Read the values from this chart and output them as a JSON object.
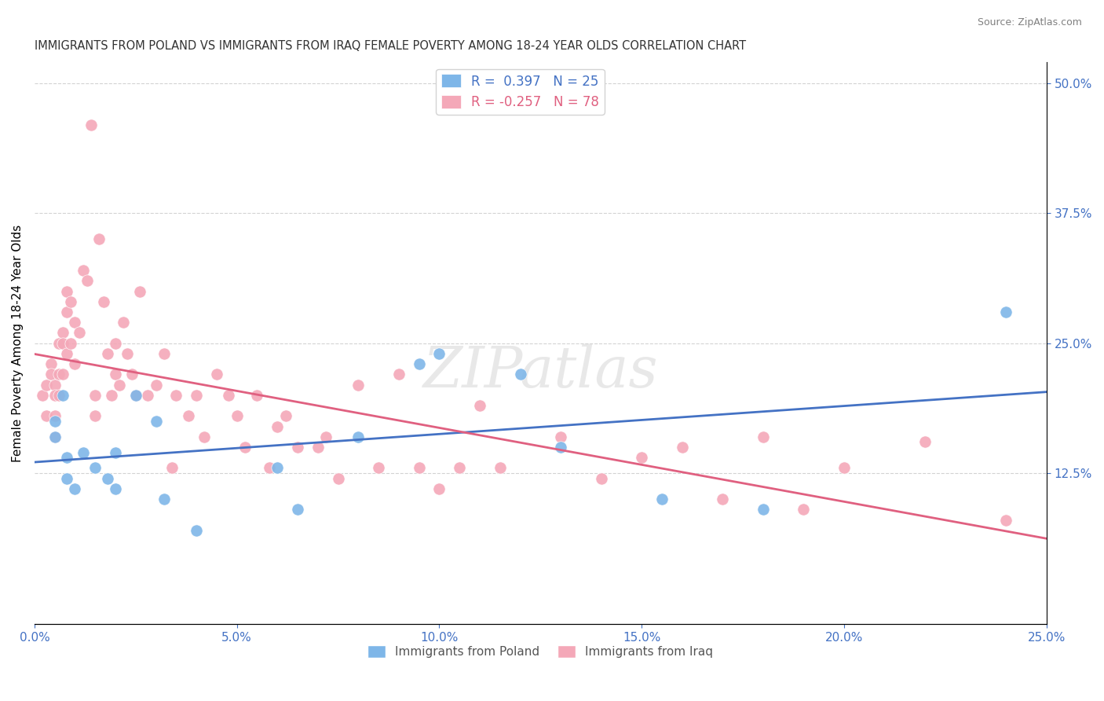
{
  "title": "IMMIGRANTS FROM POLAND VS IMMIGRANTS FROM IRAQ FEMALE POVERTY AMONG 18-24 YEAR OLDS CORRELATION CHART",
  "source": "Source: ZipAtlas.com",
  "ylabel": "Female Poverty Among 18-24 Year Olds",
  "xlabel_ticks": [
    "0.0%",
    "25.0%"
  ],
  "ylabel_ticks": [
    "12.5%",
    "25.0%",
    "37.5%",
    "50.0%"
  ],
  "xlim": [
    0,
    0.25
  ],
  "ylim": [
    -0.02,
    0.52
  ],
  "poland_color": "#7EB6E8",
  "poland_color_line": "#4472C4",
  "iraq_color": "#F4A8B8",
  "iraq_color_line": "#E06080",
  "watermark": "ZIPatlas",
  "legend_r_poland": "R =  0.397",
  "legend_n_poland": "N = 25",
  "legend_r_iraq": "R = -0.257",
  "legend_n_iraq": "N = 78",
  "poland_x": [
    0.005,
    0.005,
    0.007,
    0.008,
    0.008,
    0.01,
    0.012,
    0.015,
    0.018,
    0.02,
    0.02,
    0.025,
    0.03,
    0.032,
    0.04,
    0.06,
    0.065,
    0.08,
    0.095,
    0.1,
    0.12,
    0.13,
    0.155,
    0.18,
    0.24
  ],
  "poland_y": [
    0.175,
    0.16,
    0.2,
    0.14,
    0.12,
    0.11,
    0.145,
    0.13,
    0.12,
    0.11,
    0.145,
    0.2,
    0.175,
    0.1,
    0.07,
    0.13,
    0.09,
    0.16,
    0.23,
    0.24,
    0.22,
    0.15,
    0.1,
    0.09,
    0.28
  ],
  "iraq_x": [
    0.002,
    0.003,
    0.003,
    0.004,
    0.004,
    0.005,
    0.005,
    0.005,
    0.005,
    0.006,
    0.006,
    0.006,
    0.007,
    0.007,
    0.007,
    0.008,
    0.008,
    0.008,
    0.009,
    0.009,
    0.01,
    0.01,
    0.011,
    0.012,
    0.013,
    0.014,
    0.015,
    0.015,
    0.016,
    0.017,
    0.018,
    0.019,
    0.02,
    0.02,
    0.021,
    0.022,
    0.023,
    0.024,
    0.025,
    0.026,
    0.028,
    0.03,
    0.032,
    0.034,
    0.035,
    0.038,
    0.04,
    0.042,
    0.045,
    0.048,
    0.05,
    0.052,
    0.055,
    0.058,
    0.06,
    0.062,
    0.065,
    0.07,
    0.072,
    0.075,
    0.08,
    0.085,
    0.09,
    0.095,
    0.1,
    0.105,
    0.11,
    0.115,
    0.13,
    0.14,
    0.15,
    0.16,
    0.17,
    0.18,
    0.19,
    0.2,
    0.22,
    0.24
  ],
  "iraq_y": [
    0.2,
    0.21,
    0.18,
    0.23,
    0.22,
    0.21,
    0.2,
    0.18,
    0.16,
    0.25,
    0.22,
    0.2,
    0.26,
    0.25,
    0.22,
    0.3,
    0.28,
    0.24,
    0.29,
    0.25,
    0.27,
    0.23,
    0.26,
    0.32,
    0.31,
    0.46,
    0.2,
    0.18,
    0.35,
    0.29,
    0.24,
    0.2,
    0.25,
    0.22,
    0.21,
    0.27,
    0.24,
    0.22,
    0.2,
    0.3,
    0.2,
    0.21,
    0.24,
    0.13,
    0.2,
    0.18,
    0.2,
    0.16,
    0.22,
    0.2,
    0.18,
    0.15,
    0.2,
    0.13,
    0.17,
    0.18,
    0.15,
    0.15,
    0.16,
    0.12,
    0.21,
    0.13,
    0.22,
    0.13,
    0.11,
    0.13,
    0.19,
    0.13,
    0.16,
    0.12,
    0.14,
    0.15,
    0.1,
    0.16,
    0.09,
    0.13,
    0.155,
    0.08
  ]
}
